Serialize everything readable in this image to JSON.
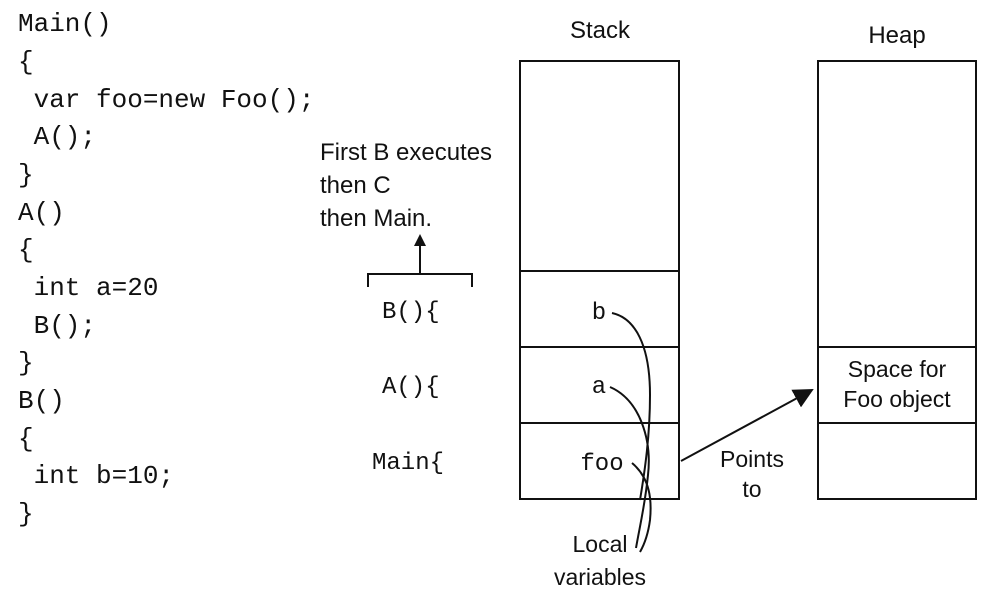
{
  "code_lines": [
    "Main()",
    "{",
    " var foo=new Foo();",
    " A();",
    "}",
    "A()",
    "{",
    " int a=20",
    " B();",
    "}",
    "B()",
    "{",
    " int b=10;",
    "}"
  ],
  "note": {
    "line1": "First B executes",
    "line2": "then C",
    "line3": "then Main."
  },
  "frames": {
    "b_label": "B(){",
    "a_label": "A(){",
    "main_label": "Main{"
  },
  "stack": {
    "title": "Stack",
    "vars": {
      "b": "b",
      "a": "a",
      "foo": "foo"
    }
  },
  "heap": {
    "title": "Heap",
    "space_line1": "Space for",
    "space_line2": "Foo object"
  },
  "points_to": {
    "line1": "Points",
    "line2": "to"
  },
  "local_vars": {
    "line1": "Local",
    "line2": "variables"
  }
}
